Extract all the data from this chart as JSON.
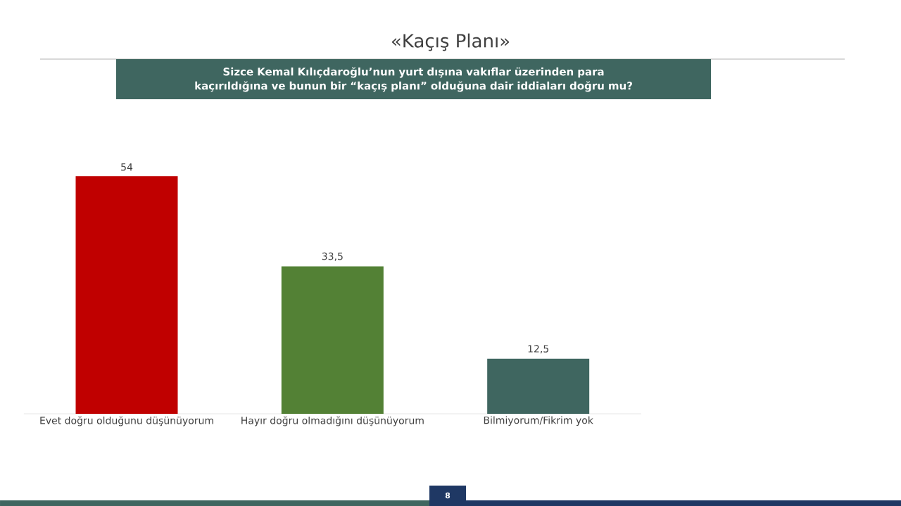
{
  "chart_data": {
    "type": "bar",
    "title": "«Kaçış Planı»",
    "subtitle": "Sizce Kemal Kılıçdaroğlu’nun yurt dışına vakıflar üzerinden para kaçırıldığına ve bunun bir “kaçış planı” olduğuna dair iddiaları doğru mu?",
    "categories": [
      "Evet doğru olduğunu düşünüyorum",
      "Hayır doğru olmadığını düşünüyorum",
      "Bilmiyorum/Fikrim yok"
    ],
    "values": [
      54,
      33.5,
      12.5
    ],
    "colors": [
      "#c00000",
      "#538135",
      "#3f6660"
    ],
    "value_labels": [
      "54",
      "33,5",
      "12,5"
    ],
    "tick_labels": "x",
    "annotations": [
      "8"
    ]
  }
}
